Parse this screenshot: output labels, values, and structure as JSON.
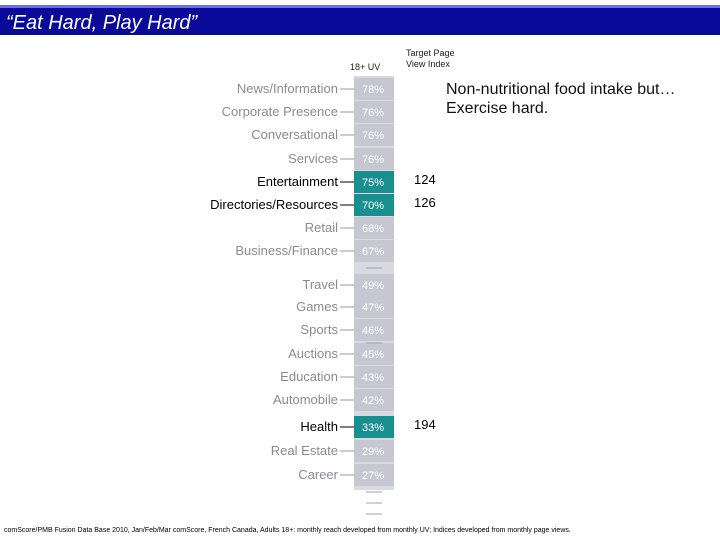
{
  "slide": {
    "title": "“Eat Hard, Play Hard”",
    "annotation": "Non-nutritional food intake but… Exercise hard.",
    "footnote": "comScore/PMB Fusion Data Base 2010, Jan/Feb/Mar comScore, French Canada, Adults 18+: monthly reach developed from monthly UV; Indices developed from monthly page views.",
    "col_uv": "18+ UV",
    "col_index_line1": "Target Page",
    "col_index_line2": "View Index"
  },
  "colors": {
    "title_band": "#0a0a9a",
    "bar_dim": "#c7c7d2",
    "bar_highlight": "#1a8f8f"
  },
  "chart_data": {
    "type": "table",
    "columns": [
      "18+ UV",
      "Target Page View Index"
    ],
    "rows": [
      {
        "category": "News/Information",
        "uv": "78%",
        "index": null,
        "highlight": false
      },
      {
        "category": "Corporate Presence",
        "uv": "76%",
        "index": null,
        "highlight": false
      },
      {
        "category": "Conversational",
        "uv": "76%",
        "index": null,
        "highlight": false
      },
      {
        "category": "Services",
        "uv": "76%",
        "index": null,
        "highlight": false
      },
      {
        "category": "Entertainment",
        "uv": "75%",
        "index": "124",
        "highlight": true
      },
      {
        "category": "Directories/Resources",
        "uv": "70%",
        "index": "126",
        "highlight": true
      },
      {
        "category": "Retail",
        "uv": "68%",
        "index": null,
        "highlight": false
      },
      {
        "category": "Business/Finance",
        "uv": "67%",
        "index": null,
        "highlight": false
      },
      {
        "category": "Travel",
        "uv": "49%",
        "index": null,
        "highlight": false
      },
      {
        "category": "Games",
        "uv": "47%",
        "index": null,
        "highlight": false
      },
      {
        "category": "Sports",
        "uv": "46%",
        "index": null,
        "highlight": false
      },
      {
        "category": "Auctions",
        "uv": "45%",
        "index": null,
        "highlight": false
      },
      {
        "category": "Education",
        "uv": "43%",
        "index": null,
        "highlight": false
      },
      {
        "category": "Automobile",
        "uv": "42%",
        "index": null,
        "highlight": false
      },
      {
        "category": "Health",
        "uv": "33%",
        "index": "194",
        "highlight": true
      },
      {
        "category": "Real Estate",
        "uv": "29%",
        "index": null,
        "highlight": false
      },
      {
        "category": "Career",
        "uv": "27%",
        "index": null,
        "highlight": false
      }
    ]
  }
}
